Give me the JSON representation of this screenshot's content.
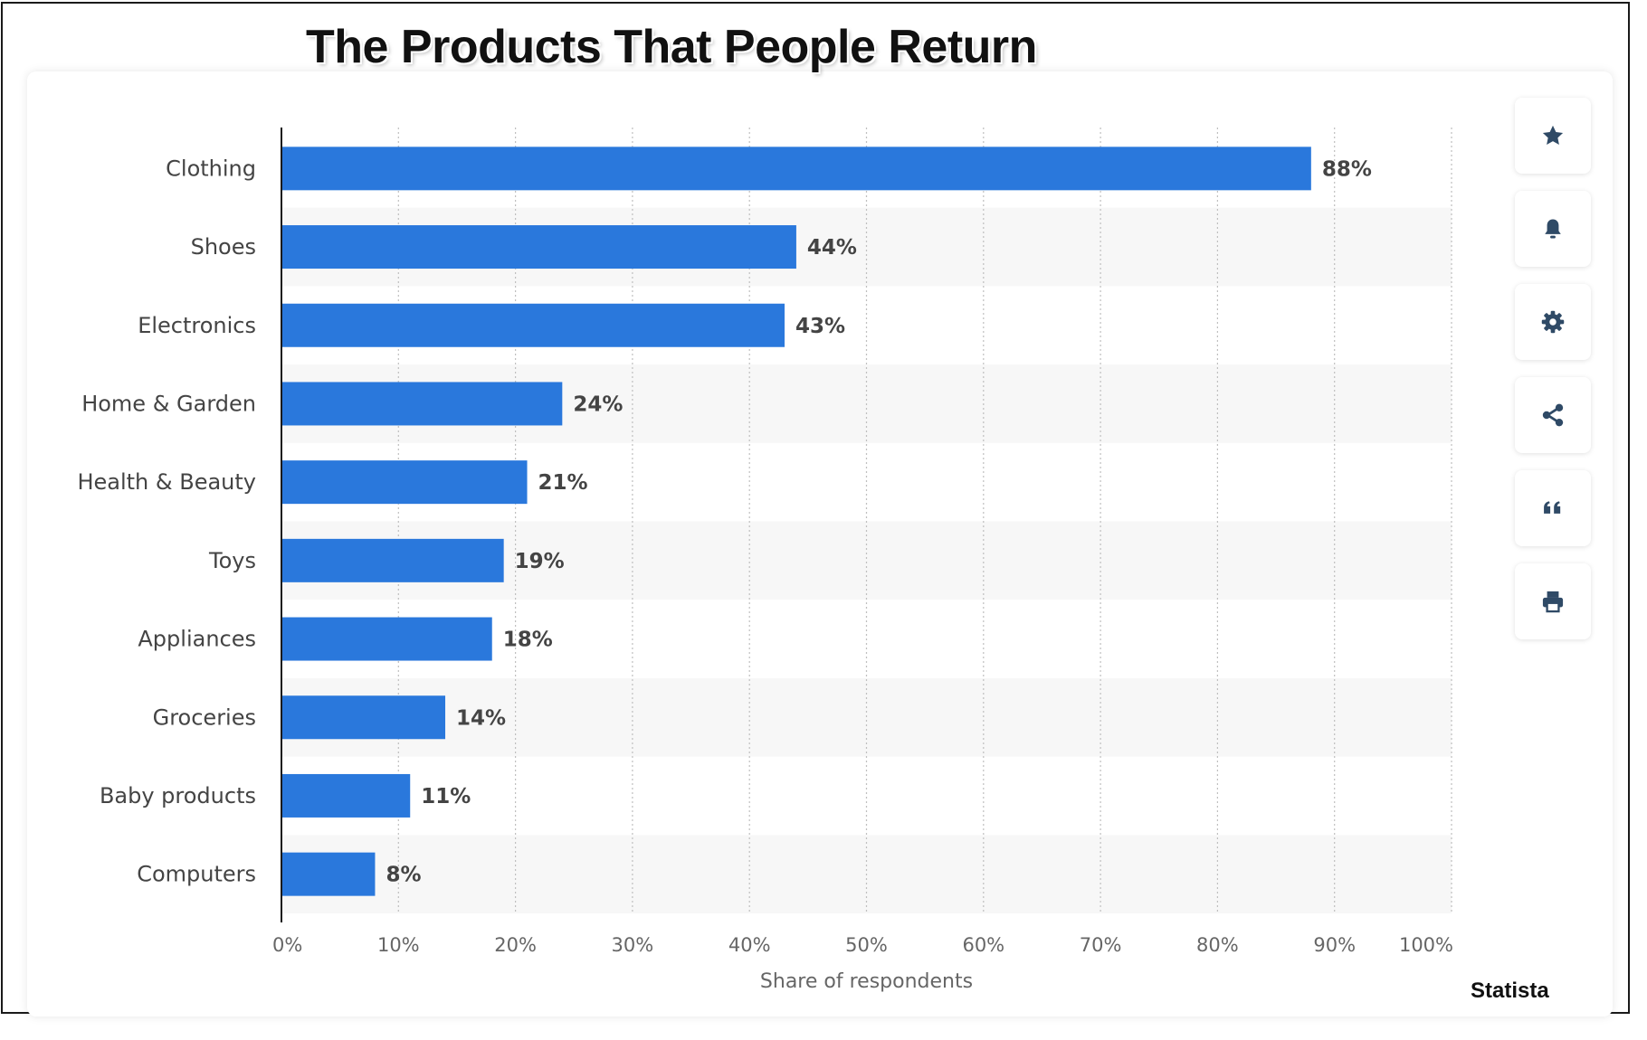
{
  "title": "The Products That People Return",
  "source": "Statista",
  "toolbar": {
    "icons": [
      "star-icon",
      "bell-icon",
      "gear-icon",
      "share-icon",
      "quote-icon",
      "print-icon"
    ]
  },
  "colors": {
    "bar": "#2a78dc",
    "label": "#444444",
    "axis_text": "#666666",
    "stripe": "#f7f7f7",
    "icon": "#2f4a66"
  },
  "chart_data": {
    "type": "bar",
    "orientation": "horizontal",
    "categories": [
      "Clothing",
      "Shoes",
      "Electronics",
      "Home & Garden",
      "Health & Beauty",
      "Toys",
      "Appliances",
      "Groceries",
      "Baby products",
      "Computers"
    ],
    "values": [
      88,
      44,
      43,
      24,
      21,
      19,
      18,
      14,
      11,
      8
    ],
    "value_labels": [
      "88%",
      "44%",
      "43%",
      "24%",
      "21%",
      "19%",
      "18%",
      "14%",
      "11%",
      "8%"
    ],
    "xlabel": "Share of respondents",
    "xlim": [
      0,
      100
    ],
    "xticks": [
      "0%",
      "10%",
      "20%",
      "30%",
      "40%",
      "50%",
      "60%",
      "70%",
      "80%",
      "90%",
      "100%"
    ],
    "grid": true
  }
}
